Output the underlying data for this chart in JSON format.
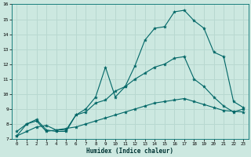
{
  "xlabel": "Humidex (Indice chaleur)",
  "xlim": [
    -0.5,
    23.5
  ],
  "ylim": [
    7,
    16
  ],
  "xticks": [
    0,
    1,
    2,
    3,
    4,
    5,
    6,
    7,
    8,
    9,
    10,
    11,
    12,
    13,
    14,
    15,
    16,
    17,
    18,
    19,
    20,
    21,
    22,
    23
  ],
  "yticks": [
    7,
    8,
    9,
    10,
    11,
    12,
    13,
    14,
    15,
    16
  ],
  "bg_color": "#cce8e0",
  "grid_color": "#b8d8d0",
  "line_color": "#006666",
  "line1_x": [
    0,
    1,
    2,
    3,
    4,
    5,
    6,
    7,
    8,
    9,
    10,
    11,
    12,
    13,
    14,
    15,
    16,
    17,
    18,
    19,
    20,
    21,
    22,
    23
  ],
  "line1_y": [
    7.2,
    8.0,
    8.3,
    7.6,
    7.5,
    7.5,
    8.6,
    9.0,
    9.8,
    11.8,
    9.8,
    10.5,
    11.9,
    13.6,
    14.4,
    14.5,
    15.5,
    15.6,
    14.9,
    14.4,
    12.8,
    12.5,
    9.5,
    9.1
  ],
  "line2_x": [
    0,
    1,
    2,
    3,
    4,
    5,
    6,
    7,
    8,
    9,
    10,
    11,
    12,
    13,
    14,
    15,
    16,
    17,
    18,
    19,
    20,
    21,
    22,
    23
  ],
  "line2_y": [
    7.5,
    8.0,
    8.2,
    7.5,
    7.6,
    7.6,
    8.6,
    8.8,
    9.4,
    9.6,
    10.2,
    10.5,
    11.0,
    11.4,
    11.8,
    12.0,
    12.4,
    12.5,
    11.0,
    10.5,
    9.8,
    9.2,
    8.8,
    9.0
  ],
  "line3_x": [
    0,
    1,
    2,
    3,
    4,
    5,
    6,
    7,
    8,
    9,
    10,
    11,
    12,
    13,
    14,
    15,
    16,
    17,
    18,
    19,
    20,
    21,
    22,
    23
  ],
  "line3_y": [
    7.2,
    7.5,
    7.8,
    7.9,
    7.6,
    7.7,
    7.8,
    8.0,
    8.2,
    8.4,
    8.6,
    8.8,
    9.0,
    9.2,
    9.4,
    9.5,
    9.6,
    9.7,
    9.5,
    9.3,
    9.1,
    8.9,
    8.85,
    8.8
  ]
}
